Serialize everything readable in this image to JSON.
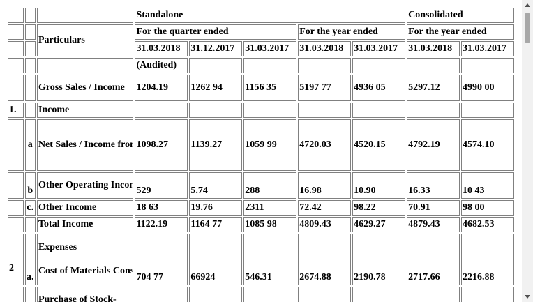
{
  "header": {
    "standalone": "Standalone",
    "consolidated": "Consolidated",
    "particulars": "Particulars",
    "quarter_ended": "For the quarter ended",
    "year_ended": "For the year ended",
    "year_ended_cons": "For the year ended",
    "dates": [
      "31.03.2018",
      "31.12.2017",
      "31.03.2017",
      "31.03.2018",
      "31.03.2017",
      "31.03.2018",
      "31.03.2017"
    ],
    "audited": "(Audited)"
  },
  "rows": {
    "gross": {
      "label": "Gross Sales / Income",
      "values": [
        "1204.19",
        "1262 94",
        "1156 35",
        "5197 77",
        "4936 05",
        "5297.12",
        "4990 00"
      ]
    },
    "income": {
      "num": "1.",
      "label": "Income"
    },
    "net_sales": {
      "sub": "a",
      "label": "Net Sales / Income from Operations (Net of Discounts and Rebates)",
      "values": [
        "1098.27",
        "1139.27",
        "1059 99",
        "4720.03",
        "4520.15",
        "4792.19",
        "4574.10"
      ]
    },
    "other_op": {
      "sub": "b",
      "label": "Other Operating Income",
      "values": [
        "529",
        "5.74",
        "288",
        "16.98",
        "10.90",
        "16.33",
        "10 43"
      ]
    },
    "other_income": {
      "sub": "c.",
      "label": "Other Income",
      "values": [
        "18 63",
        "19.76",
        "2311",
        "72.42",
        "98.22",
        "70.91",
        "98 00"
      ]
    },
    "total_income": {
      "label": "Total Income",
      "values": [
        "1122.19",
        "1164 77",
        "1085 98",
        "4809.43",
        "4629.27",
        "4879.43",
        "4682.53"
      ]
    },
    "expenses": {
      "num": "2",
      "sub": "a.",
      "title": "Expenses",
      "label": "Cost of Materials Consumed",
      "values": [
        "704 77",
        "66924",
        "546.31",
        "2674.88",
        "2190.78",
        "2717.66",
        "2216.88"
      ]
    },
    "purchase": {
      "label": "Purchase of Stock-"
    }
  }
}
